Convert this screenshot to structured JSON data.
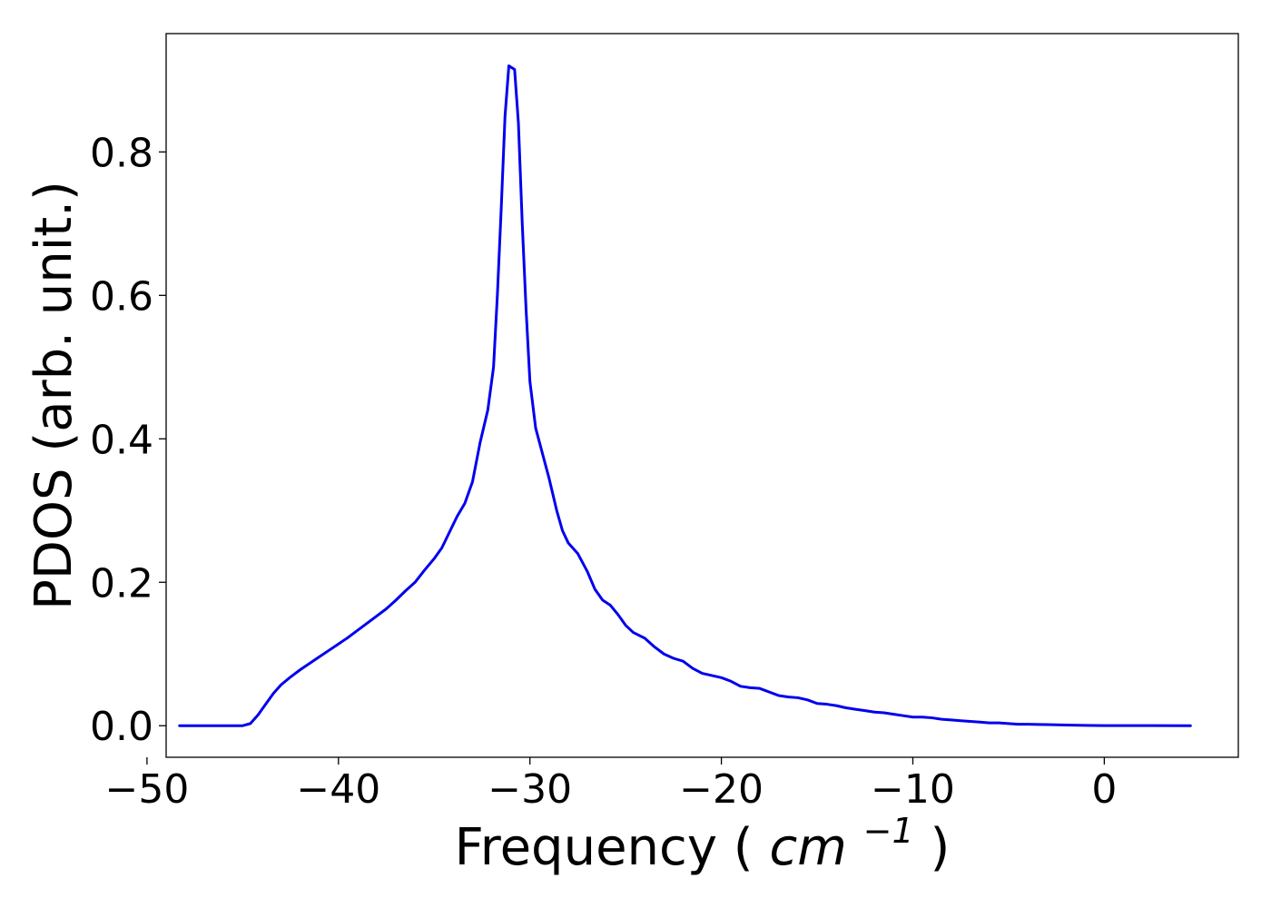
{
  "chart_data": {
    "type": "line",
    "xlabel": "Frequency",
    "xlabel_unit_prefix": "(",
    "xlabel_unit_base": "cm",
    "xlabel_unit_exponent": "−1",
    "xlabel_unit_suffix": ")",
    "ylabel": "PDOS (arb. unit.)",
    "xlim": [
      -49,
      7
    ],
    "ylim": [
      -0.044,
      0.965
    ],
    "xticks": [
      -50,
      -40,
      -30,
      -20,
      -10,
      0
    ],
    "xtick_labels": [
      "−50",
      "−40",
      "−30",
      "−20",
      "−10",
      "0"
    ],
    "yticks": [
      0.0,
      0.2,
      0.4,
      0.6,
      0.8
    ],
    "ytick_labels": [
      "0.0",
      "0.2",
      "0.4",
      "0.6",
      "0.8"
    ],
    "grid": false,
    "legend": "none",
    "line_color": "#0000ee",
    "series": [
      {
        "points": [
          [
            -48.3,
            0.0
          ],
          [
            -45.0,
            0.0
          ],
          [
            -44.6,
            0.003
          ],
          [
            -44.2,
            0.015
          ],
          [
            -43.8,
            0.03
          ],
          [
            -43.4,
            0.045
          ],
          [
            -43.0,
            0.057
          ],
          [
            -42.5,
            0.068
          ],
          [
            -42.0,
            0.078
          ],
          [
            -41.5,
            0.087
          ],
          [
            -41.0,
            0.096
          ],
          [
            -40.5,
            0.105
          ],
          [
            -40.0,
            0.114
          ],
          [
            -39.5,
            0.123
          ],
          [
            -39.0,
            0.133
          ],
          [
            -38.5,
            0.143
          ],
          [
            -38.0,
            0.153
          ],
          [
            -37.5,
            0.163
          ],
          [
            -37.0,
            0.175
          ],
          [
            -36.5,
            0.188
          ],
          [
            -36.0,
            0.2
          ],
          [
            -35.5,
            0.217
          ],
          [
            -35.0,
            0.233
          ],
          [
            -34.6,
            0.248
          ],
          [
            -34.2,
            0.27
          ],
          [
            -33.8,
            0.292
          ],
          [
            -33.4,
            0.31
          ],
          [
            -33.0,
            0.34
          ],
          [
            -32.6,
            0.395
          ],
          [
            -32.2,
            0.44
          ],
          [
            -31.9,
            0.5
          ],
          [
            -31.7,
            0.6
          ],
          [
            -31.5,
            0.72
          ],
          [
            -31.3,
            0.85
          ],
          [
            -31.1,
            0.92
          ],
          [
            -30.8,
            0.915
          ],
          [
            -30.6,
            0.84
          ],
          [
            -30.4,
            0.7
          ],
          [
            -30.2,
            0.58
          ],
          [
            -30.0,
            0.48
          ],
          [
            -29.7,
            0.415
          ],
          [
            -29.4,
            0.385
          ],
          [
            -29.0,
            0.345
          ],
          [
            -28.6,
            0.3
          ],
          [
            -28.3,
            0.272
          ],
          [
            -28.0,
            0.255
          ],
          [
            -27.5,
            0.24
          ],
          [
            -27.0,
            0.215
          ],
          [
            -26.6,
            0.19
          ],
          [
            -26.2,
            0.175
          ],
          [
            -25.8,
            0.168
          ],
          [
            -25.4,
            0.155
          ],
          [
            -25.0,
            0.14
          ],
          [
            -24.6,
            0.13
          ],
          [
            -24.0,
            0.122
          ],
          [
            -23.5,
            0.11
          ],
          [
            -23.0,
            0.1
          ],
          [
            -22.5,
            0.094
          ],
          [
            -22.0,
            0.09
          ],
          [
            -21.5,
            0.08
          ],
          [
            -21.0,
            0.073
          ],
          [
            -20.5,
            0.07
          ],
          [
            -20.0,
            0.067
          ],
          [
            -19.5,
            0.062
          ],
          [
            -19.0,
            0.055
          ],
          [
            -18.5,
            0.053
          ],
          [
            -18.0,
            0.052
          ],
          [
            -17.5,
            0.047
          ],
          [
            -17.0,
            0.042
          ],
          [
            -16.5,
            0.04
          ],
          [
            -16.0,
            0.039
          ],
          [
            -15.5,
            0.036
          ],
          [
            -15.0,
            0.031
          ],
          [
            -14.5,
            0.03
          ],
          [
            -14.0,
            0.028
          ],
          [
            -13.5,
            0.025
          ],
          [
            -13.0,
            0.023
          ],
          [
            -12.5,
            0.021
          ],
          [
            -12.0,
            0.019
          ],
          [
            -11.5,
            0.018
          ],
          [
            -11.0,
            0.016
          ],
          [
            -10.5,
            0.014
          ],
          [
            -10.0,
            0.012
          ],
          [
            -9.5,
            0.012
          ],
          [
            -9.0,
            0.011
          ],
          [
            -8.5,
            0.009
          ],
          [
            -8.0,
            0.008
          ],
          [
            -7.5,
            0.007
          ],
          [
            -7.0,
            0.006
          ],
          [
            -6.5,
            0.005
          ],
          [
            -6.0,
            0.004
          ],
          [
            -5.5,
            0.004
          ],
          [
            -5.0,
            0.003
          ],
          [
            -4.5,
            0.002
          ],
          [
            -4.0,
            0.002
          ],
          [
            -3.0,
            0.0015
          ],
          [
            -2.0,
            0.001
          ],
          [
            -1.0,
            0.0005
          ],
          [
            0.0,
            0.0002
          ],
          [
            2.0,
            0.0001
          ],
          [
            4.5,
            0.0
          ]
        ]
      }
    ]
  }
}
